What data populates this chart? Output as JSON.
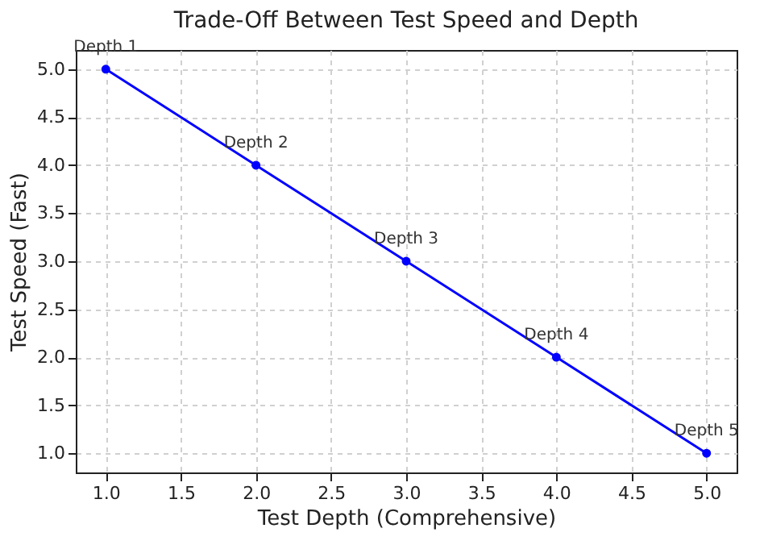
{
  "chart_data": {
    "type": "line",
    "title": "Trade-Off Between Test Speed and Depth",
    "xlabel": "Test Depth (Comprehensive)",
    "ylabel": "Test Speed (Fast)",
    "x": [
      1,
      2,
      3,
      4,
      5
    ],
    "series": [
      {
        "color": "#0000ff",
        "values": [
          5,
          4,
          3,
          2,
          1
        ]
      }
    ],
    "xlim": [
      0.8,
      5.2
    ],
    "ylim": [
      0.8,
      5.2
    ],
    "xticks": [
      {
        "value": 1,
        "label": "1.0"
      },
      {
        "value": 1.5,
        "label": "1.5"
      },
      {
        "value": 2,
        "label": "2.0"
      },
      {
        "value": 2.5,
        "label": "2.5"
      },
      {
        "value": 3,
        "label": "3.0"
      },
      {
        "value": 3.5,
        "label": "3.5"
      },
      {
        "value": 4,
        "label": "4.0"
      },
      {
        "value": 4.5,
        "label": "4.5"
      },
      {
        "value": 5,
        "label": "5.0"
      }
    ],
    "yticks": [
      {
        "value": 1,
        "label": "1.0"
      },
      {
        "value": 1.5,
        "label": "1.5"
      },
      {
        "value": 2,
        "label": "2.0"
      },
      {
        "value": 2.5,
        "label": "2.5"
      },
      {
        "value": 3,
        "label": "3.0"
      },
      {
        "value": 3.5,
        "label": "3.5"
      },
      {
        "value": 4,
        "label": "4.0"
      },
      {
        "value": 4.5,
        "label": "4.5"
      },
      {
        "value": 5,
        "label": "5.0"
      }
    ],
    "annotations": [
      {
        "text": "Depth 1",
        "x": 1,
        "y": 5
      },
      {
        "text": "Depth 2",
        "x": 2,
        "y": 4
      },
      {
        "text": "Depth 3",
        "x": 3,
        "y": 3
      },
      {
        "text": "Depth 4",
        "x": 4,
        "y": 2
      },
      {
        "text": "Depth 5",
        "x": 5,
        "y": 1
      }
    ],
    "grid": true,
    "marker": "circle",
    "line_style": "solid"
  }
}
